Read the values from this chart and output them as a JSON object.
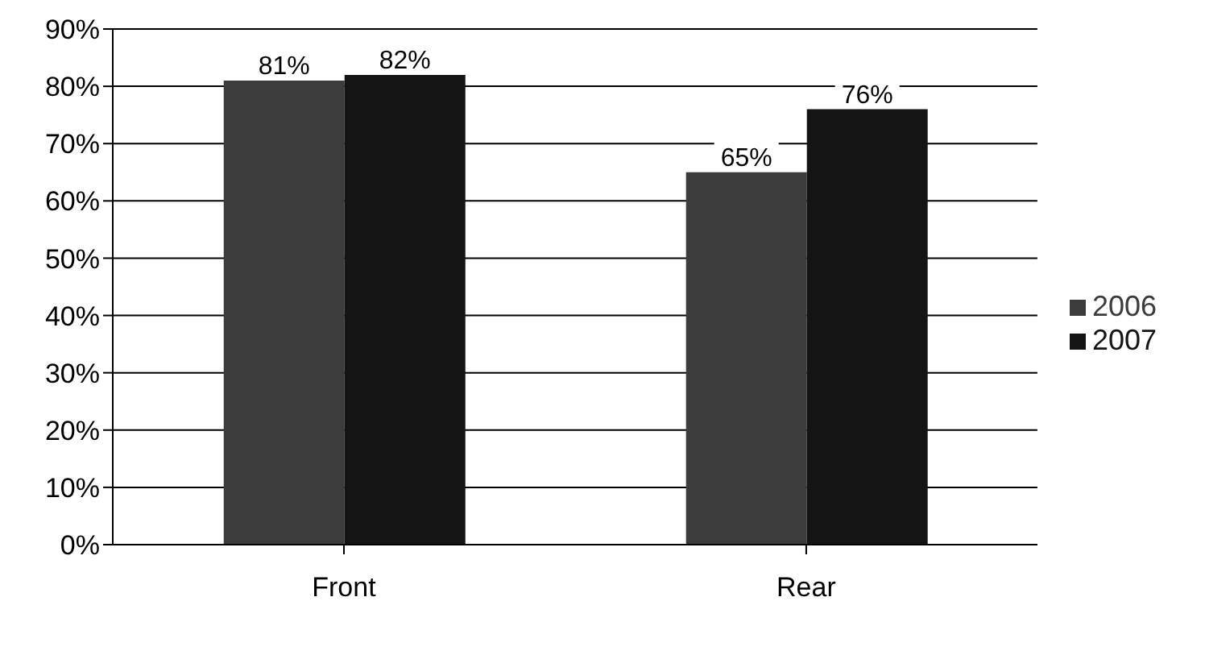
{
  "chart_data": {
    "type": "bar",
    "categories": [
      "Front",
      "Rear"
    ],
    "series": [
      {
        "name": "2006",
        "color": "#3c3c3c",
        "values": [
          81,
          65
        ],
        "value_labels": [
          "81%",
          "65%"
        ]
      },
      {
        "name": "2007",
        "color": "#141414",
        "values": [
          82,
          76
        ],
        "value_labels": [
          "82%",
          "76%"
        ]
      }
    ],
    "ylim": [
      0,
      90
    ],
    "yticks": [
      {
        "value": 0,
        "label": "0%"
      },
      {
        "value": 10,
        "label": "10%"
      },
      {
        "value": 20,
        "label": "20%"
      },
      {
        "value": 30,
        "label": "30%"
      },
      {
        "value": 40,
        "label": "40%"
      },
      {
        "value": 50,
        "label": "50%"
      },
      {
        "value": 60,
        "label": "60%"
      },
      {
        "value": 70,
        "label": "70%"
      },
      {
        "value": 80,
        "label": "80%"
      },
      {
        "value": 90,
        "label": "90%"
      }
    ],
    "grid": "y",
    "legend": "right"
  }
}
